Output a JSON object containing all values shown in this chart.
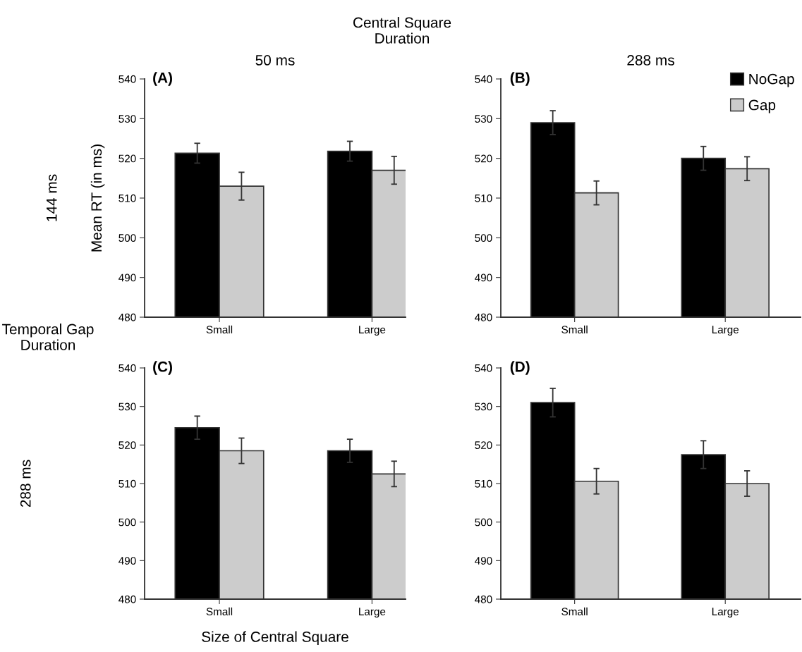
{
  "chart_data": [
    {
      "type": "bar",
      "title": "50 ms",
      "ylabel": "Mean RT (in ms)",
      "categories": [
        "Small",
        "Large"
      ],
      "ylim": [
        480,
        540
      ],
      "yticks": [
        480,
        490,
        500,
        510,
        520,
        530,
        540
      ],
      "grid": false,
      "legend": false,
      "annotations": [
        "(A)",
        "144 ms",
        "Central Square\nDuration"
      ],
      "series": [
        {
          "color": "#000000",
          "values": [
            521.3,
            521.8
          ],
          "errors": [
            2.5,
            2.5
          ]
        },
        {
          "color": "#cccccc",
          "values": [
            513,
            517
          ],
          "errors": [
            3.5,
            3.5
          ]
        }
      ]
    },
    {
      "type": "bar",
      "title": "288 ms",
      "categories": [
        "Small",
        "Large"
      ],
      "ylim": [
        480,
        540
      ],
      "yticks": [
        480,
        490,
        500,
        510,
        520,
        530,
        540
      ],
      "grid": false,
      "legend": "top right",
      "annotations": [
        "(B)"
      ],
      "series": [
        {
          "name": "NoGap",
          "color": "#000000",
          "values": [
            529,
            520
          ],
          "errors": [
            3,
            3
          ]
        },
        {
          "name": "Gap",
          "color": "#cccccc",
          "values": [
            511.3,
            517.4
          ],
          "errors": [
            3,
            3
          ]
        }
      ]
    },
    {
      "type": "bar",
      "xlabel": "Size of Central Square",
      "categories": [
        "Small",
        "Large"
      ],
      "ylim": [
        480,
        540
      ],
      "yticks": [
        480,
        490,
        500,
        510,
        520,
        530,
        540
      ],
      "grid": false,
      "legend": false,
      "annotations": [
        "(C)",
        "288 ms",
        "Temporal Gap\nDuration"
      ],
      "series": [
        {
          "color": "#000000",
          "values": [
            524.5,
            518.5
          ],
          "errors": [
            3,
            3
          ]
        },
        {
          "color": "#cccccc",
          "values": [
            518.5,
            512.5
          ],
          "errors": [
            3.3,
            3.3
          ]
        }
      ]
    },
    {
      "type": "bar",
      "categories": [
        "Small",
        "Large"
      ],
      "ylim": [
        480,
        540
      ],
      "yticks": [
        480,
        490,
        500,
        510,
        520,
        530,
        540
      ],
      "grid": false,
      "legend": false,
      "annotations": [
        "(D)"
      ],
      "series": [
        {
          "color": "#000000",
          "values": [
            531,
            517.5
          ],
          "errors": [
            3.7,
            3.6
          ]
        },
        {
          "color": "#cccccc",
          "values": [
            510.6,
            510
          ],
          "errors": [
            3.3,
            3.3
          ]
        }
      ]
    }
  ]
}
